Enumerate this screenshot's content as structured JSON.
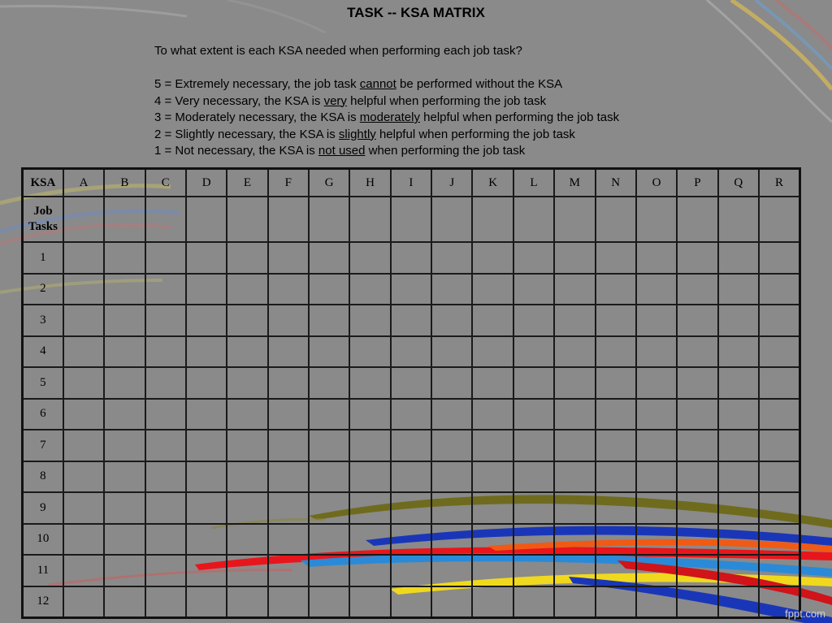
{
  "title": "TASK -- KSA MATRIX",
  "question": "To what extent is each KSA needed when performing each job task?",
  "legend": [
    {
      "before": "5 = Extremely necessary, the job task ",
      "emph": "cannot",
      "after": " be performed without the KSA"
    },
    {
      "before": "4 = Very necessary, the KSA is ",
      "emph": "very",
      "after": " helpful when performing the job task"
    },
    {
      "before": "3 = Moderately necessary, the KSA is ",
      "emph": "moderately",
      "after": " helpful when performing the job task"
    },
    {
      "before": "2 = Slightly necessary, the KSA is ",
      "emph": "slightly",
      "after": " helpful when performing the job task"
    },
    {
      "before": "1 = Not necessary, the KSA is ",
      "emph": "not used",
      "after": " when performing the job task"
    }
  ],
  "table": {
    "corner_label": "KSA",
    "columns": [
      "A",
      "B",
      "C",
      "D",
      "E",
      "F",
      "G",
      "H",
      "I",
      "J",
      "K",
      "L",
      "M",
      "N",
      "O",
      "P",
      "Q",
      "R"
    ],
    "job_tasks_label": "Job Tasks",
    "rows": [
      "1",
      "2",
      "3",
      "4",
      "5",
      "6",
      "7",
      "8",
      "9",
      "10",
      "11",
      "12"
    ]
  },
  "watermark": "fppt.com",
  "colors": {
    "background": "#8a8a8a",
    "olive_band": "#6f6b1e",
    "red_band": "#e8161c",
    "blue_band": "#1a36b8",
    "yellow_band": "#f0d81e",
    "orange_band": "#f05a14",
    "lightblue_band": "#2a8ad8"
  }
}
